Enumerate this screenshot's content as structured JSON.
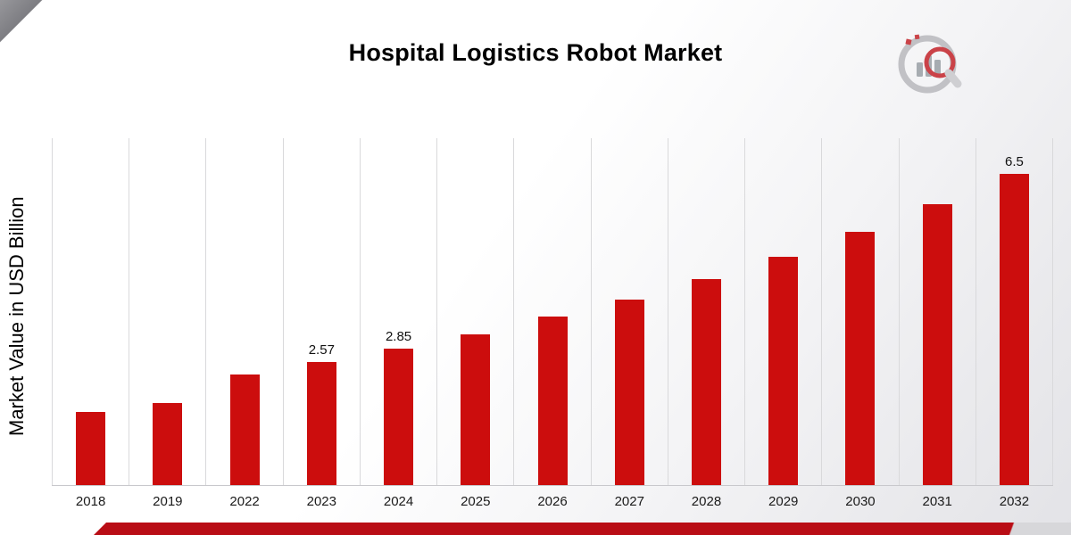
{
  "title": "Hospital Logistics Robot Market",
  "logo": {
    "name": "market-research-brand-logo"
  },
  "accent": {
    "bar_color": "#cc0d0d",
    "strip_color": "#b90d15",
    "corner_gray": "#8a8a8e"
  },
  "chart_data": {
    "type": "bar",
    "title": "Hospital Logistics Robot Market",
    "xlabel": "",
    "ylabel": "Market Value in USD Billion",
    "categories": [
      "2018",
      "2019",
      "2022",
      "2023",
      "2024",
      "2025",
      "2026",
      "2027",
      "2028",
      "2029",
      "2030",
      "2031",
      "2032"
    ],
    "values": [
      1.53,
      1.71,
      2.31,
      2.57,
      2.85,
      3.15,
      3.52,
      3.87,
      4.3,
      4.77,
      5.29,
      5.88,
      6.5
    ],
    "data_labels": [
      "",
      "",
      "",
      "2.57",
      "2.85",
      "",
      "",
      "",
      "",
      "",
      "",
      "",
      "6.5"
    ],
    "bar_color": "#cc0d0d",
    "ylim": [
      0,
      7.25
    ],
    "grid": "vertical-only",
    "legend": "none"
  }
}
